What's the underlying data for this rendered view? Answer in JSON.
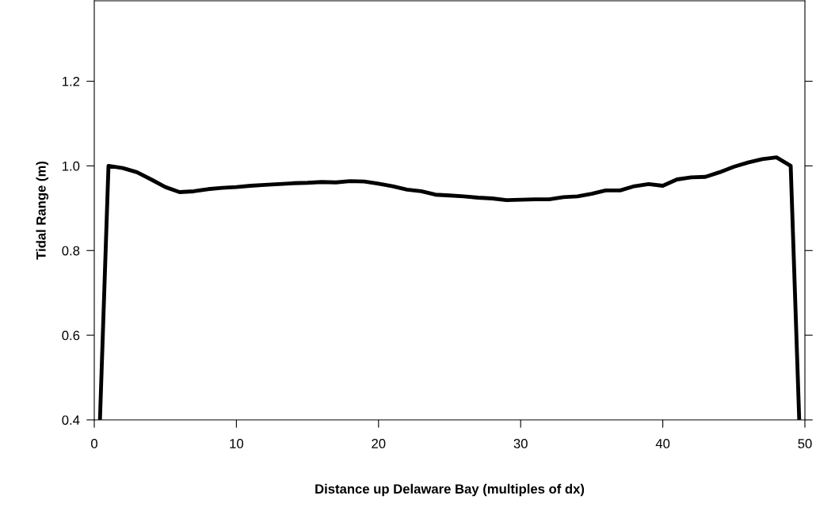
{
  "chart_data": {
    "type": "line",
    "xlabel": "Distance up Delaware Bay (multiples of dx)",
    "ylabel": "Tidal Range (m)",
    "x": [
      0.4,
      1,
      2,
      3,
      4,
      5,
      6,
      7,
      8,
      9,
      10,
      11,
      12,
      13,
      14,
      15,
      16,
      17,
      18,
      19,
      20,
      21,
      22,
      23,
      24,
      25,
      26,
      27,
      28,
      29,
      30,
      31,
      32,
      33,
      34,
      35,
      36,
      37,
      38,
      39,
      40,
      41,
      42,
      43,
      44,
      45,
      46,
      47,
      48,
      49,
      49.6
    ],
    "series": [
      {
        "color": "#000000",
        "values": [
          0.4,
          1.0,
          0.995,
          0.985,
          0.968,
          0.95,
          0.938,
          0.94,
          0.945,
          0.948,
          0.95,
          0.953,
          0.955,
          0.957,
          0.959,
          0.96,
          0.962,
          0.961,
          0.964,
          0.963,
          0.958,
          0.952,
          0.944,
          0.94,
          0.932,
          0.93,
          0.928,
          0.925,
          0.923,
          0.919,
          0.92,
          0.921,
          0.921,
          0.926,
          0.928,
          0.934,
          0.942,
          0.942,
          0.952,
          0.957,
          0.953,
          0.968,
          0.973,
          0.974,
          0.985,
          0.998,
          1.008,
          1.016,
          1.02,
          1.0,
          0.4
        ]
      }
    ],
    "xlim": [
      0,
      50
    ],
    "ylim": [
      0.4,
      1.39
    ],
    "xticks": [
      0,
      10,
      20,
      30,
      40,
      50
    ],
    "yticks": [
      {
        "value": 0.4,
        "label": "0.4"
      },
      {
        "value": 0.6,
        "label": "0.6"
      },
      {
        "value": 0.8,
        "label": "0.8"
      },
      {
        "value": 1.0,
        "label": "1.0"
      },
      {
        "value": 1.2,
        "label": "1.2"
      }
    ],
    "grid": false,
    "legend": false,
    "marker": "none",
    "line_style": "solid"
  }
}
